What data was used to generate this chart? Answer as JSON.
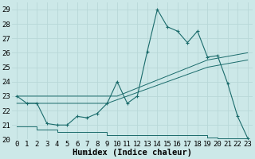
{
  "xlabel": "Humidex (Indice chaleur)",
  "background_color": "#cce8e8",
  "grid_color": "#b8d8d8",
  "line_color": "#1a6b6b",
  "xlim": [
    -0.5,
    23.5
  ],
  "ylim": [
    20.0,
    29.5
  ],
  "yticks": [
    20,
    21,
    22,
    23,
    24,
    25,
    26,
    27,
    28,
    29
  ],
  "xticks": [
    0,
    1,
    2,
    3,
    4,
    5,
    6,
    7,
    8,
    9,
    10,
    11,
    12,
    13,
    14,
    15,
    16,
    17,
    18,
    19,
    20,
    21,
    22,
    23
  ],
  "main_line_x": [
    0,
    1,
    2,
    3,
    4,
    5,
    6,
    7,
    8,
    9,
    10,
    11,
    12,
    13,
    14,
    15,
    16,
    17,
    18,
    19,
    20,
    21,
    22,
    23
  ],
  "main_line_y": [
    23.0,
    22.5,
    22.5,
    21.1,
    21.0,
    21.0,
    21.6,
    21.5,
    21.8,
    22.5,
    24.0,
    22.5,
    23.0,
    26.1,
    29.0,
    27.8,
    27.5,
    26.7,
    27.5,
    25.7,
    25.8,
    23.9,
    21.6,
    20.1
  ],
  "line2_x": [
    0,
    10,
    19,
    23
  ],
  "line2_y": [
    23.0,
    23.0,
    25.5,
    26.0
  ],
  "line3_x": [
    0,
    9,
    19,
    23
  ],
  "line3_y": [
    22.5,
    22.5,
    25.0,
    25.5
  ],
  "flat_line_x": [
    0,
    2,
    2,
    4,
    4,
    9,
    9,
    19,
    19,
    20,
    20,
    23
  ],
  "flat_line_y": [
    20.9,
    20.9,
    20.7,
    20.7,
    20.5,
    20.5,
    20.3,
    20.3,
    20.15,
    20.15,
    20.1,
    20.1
  ],
  "tick_fontsize": 6.5,
  "label_fontsize": 7.5
}
